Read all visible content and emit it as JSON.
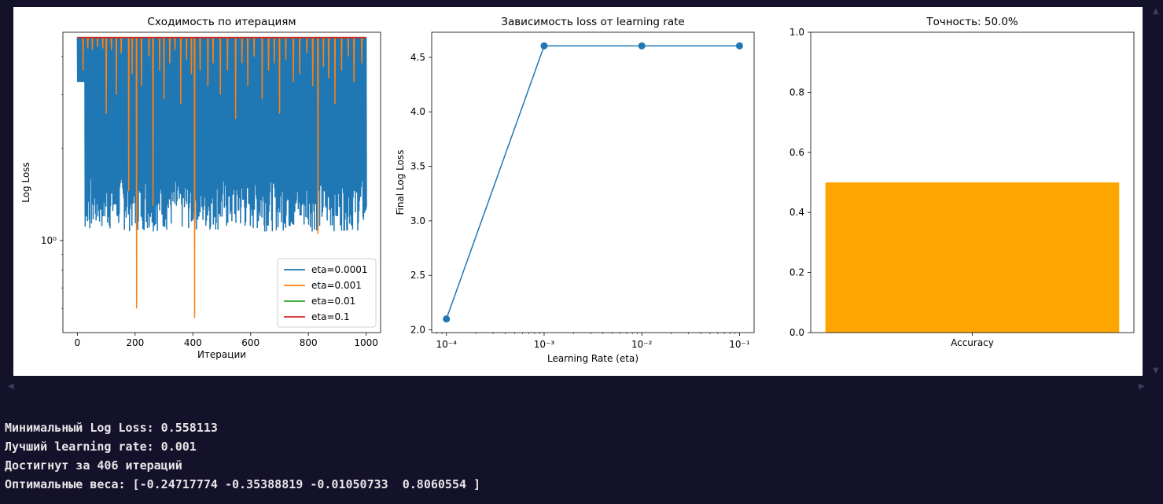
{
  "scrollbar": {
    "up_icon": "triangle-up-icon",
    "down_icon": "triangle-down-icon",
    "left_icon": "triangle-left-icon",
    "right_icon": "triangle-right-icon"
  },
  "colors": {
    "background": "#14112b",
    "series": [
      "#1f77b4",
      "#ff7f0e",
      "#2ca02c",
      "#d62728"
    ],
    "accuracy_bar": "#ffa500"
  },
  "chart_data": [
    {
      "type": "line",
      "title": "Сходимость по итерациям",
      "xlabel": "Итерации",
      "ylabel": "Log Loss",
      "xscale": "linear",
      "yscale": "log",
      "xlim": [
        -50,
        1050
      ],
      "ylim": [
        0.5,
        4.8
      ],
      "xticks": [
        0,
        200,
        400,
        600,
        800,
        1000
      ],
      "xtick_labels": [
        "0",
        "200",
        "400",
        "600",
        "800",
        "1000"
      ],
      "yticks": [
        1
      ],
      "ytick_labels": [
        "10⁰"
      ],
      "grid": false,
      "legend": "lower-right",
      "series": [
        {
          "name": "eta=0.0001",
          "color": "#1f77b4",
          "x_range": [
            0,
            1000
          ],
          "upper": 4.61,
          "lower_band": [
            1.07,
            1.62
          ],
          "start": 4.61
        },
        {
          "name": "eta=0.001",
          "color": "#ff7f0e",
          "x_range": [
            0,
            1000
          ],
          "base": 4.61,
          "spikes": [
            [
              20,
              3.6
            ],
            [
              36,
              4.25
            ],
            [
              52,
              4.2
            ],
            [
              70,
              4.3
            ],
            [
              88,
              4.25
            ],
            [
              100,
              2.6
            ],
            [
              118,
              4.2
            ],
            [
              135,
              3.0
            ],
            [
              152,
              4.1
            ],
            [
              178,
              1.45
            ],
            [
              190,
              3.5
            ],
            [
              205,
              0.6
            ],
            [
              222,
              3.2
            ],
            [
              248,
              4.0
            ],
            [
              262,
              1.3
            ],
            [
              285,
              3.6
            ],
            [
              300,
              2.9
            ],
            [
              320,
              3.8
            ],
            [
              338,
              4.2
            ],
            [
              358,
              2.8
            ],
            [
              378,
              3.9
            ],
            [
              395,
              3.5
            ],
            [
              406,
              0.558
            ],
            [
              425,
              3.6
            ],
            [
              452,
              3.2
            ],
            [
              470,
              3.8
            ],
            [
              495,
              3.0
            ],
            [
              520,
              3.6
            ],
            [
              548,
              2.5
            ],
            [
              570,
              3.8
            ],
            [
              590,
              3.2
            ],
            [
              612,
              4.0
            ],
            [
              640,
              2.9
            ],
            [
              662,
              3.6
            ],
            [
              682,
              3.8
            ],
            [
              700,
              2.6
            ],
            [
              722,
              3.9
            ],
            [
              748,
              3.3
            ],
            [
              770,
              3.5
            ],
            [
              795,
              4.1
            ],
            [
              815,
              3.2
            ],
            [
              833,
              1.05
            ],
            [
              852,
              3.7
            ],
            [
              870,
              3.4
            ],
            [
              892,
              2.8
            ],
            [
              915,
              3.6
            ],
            [
              938,
              4.0
            ],
            [
              958,
              3.3
            ],
            [
              985,
              3.8
            ]
          ]
        },
        {
          "name": "eta=0.01",
          "color": "#2ca02c",
          "x_range": [
            0,
            1000
          ],
          "value": 4.61
        },
        {
          "name": "eta=0.1",
          "color": "#d62728",
          "x_range": [
            0,
            1000
          ],
          "value": 4.61
        }
      ]
    },
    {
      "type": "line",
      "title": "Зависимость loss от learning rate",
      "xlabel": "Learning Rate (eta)",
      "ylabel": "Final Log Loss",
      "xscale": "log",
      "xlim": [
        7.07e-05,
        0.141
      ],
      "ylim": [
        1.975,
        4.73
      ],
      "xtick_labels": [
        "10⁻⁴",
        "10⁻³",
        "10⁻²",
        "10⁻¹"
      ],
      "yticks": [
        2.0,
        2.5,
        3.0,
        3.5,
        4.0,
        4.5
      ],
      "ytick_labels": [
        "2.0",
        "2.5",
        "3.0",
        "3.5",
        "4.0",
        "4.5"
      ],
      "grid": false,
      "x": [
        0.0001,
        0.001,
        0.01,
        0.1
      ],
      "y": [
        2.1,
        4.605,
        4.605,
        4.605
      ]
    },
    {
      "type": "bar",
      "title": "Точность: 50.0%",
      "categories": [
        "Accuracy"
      ],
      "values": [
        0.5
      ],
      "ylim": [
        0,
        1
      ],
      "yticks": [
        0.0,
        0.2,
        0.4,
        0.6,
        0.8,
        1.0
      ],
      "ytick_labels": [
        "0.0",
        "0.2",
        "0.4",
        "0.6",
        "0.8",
        "1.0"
      ],
      "xlabel": "",
      "ylabel": "",
      "grid": false
    }
  ],
  "output": {
    "lines": [
      "Минимальный Log Loss: 0.558113",
      "Лучший learning rate: 0.001",
      "Достигнут за 406 итераций",
      "Оптимальные веса: [-0.24717774 -0.35388819 -0.01050733  0.8060554 ]"
    ]
  }
}
